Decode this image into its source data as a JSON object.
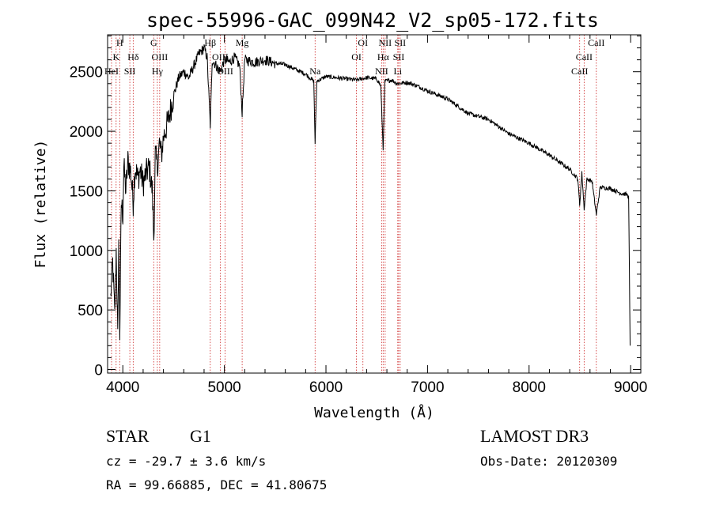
{
  "chart_data": {
    "type": "line",
    "title": "spec-55996-GAC_099N42_V2_sp05-172.fits",
    "xlabel": "Wavelength (Å)",
    "ylabel": "Flux (relative)",
    "xlim": [
      3850,
      9100
    ],
    "ylim": [
      -30,
      2810
    ],
    "xticks": [
      4000,
      5000,
      6000,
      7000,
      8000,
      9000
    ],
    "xtick_labels": [
      "4000",
      "5000",
      "6000",
      "7000",
      "8000",
      "9000"
    ],
    "yticks": [
      0,
      500,
      1000,
      1500,
      2000,
      2500
    ],
    "ytick_labels": [
      "0",
      "500",
      "1000",
      "1500",
      "2000",
      "2500"
    ],
    "series": [
      {
        "name": "spectrum",
        "x": [
          3880,
          3900,
          3920,
          3935,
          3950,
          3960,
          3970,
          3985,
          4000,
          4010,
          4030,
          4050,
          4080,
          4102,
          4120,
          4150,
          4170,
          4200,
          4230,
          4260,
          4290,
          4305,
          4320,
          4340,
          4360,
          4380,
          4400,
          4450,
          4500,
          4550,
          4600,
          4650,
          4700,
          4750,
          4800,
          4830,
          4861,
          4880,
          4920,
          4960,
          5000,
          5050,
          5100,
          5150,
          5175,
          5200,
          5300,
          5400,
          5500,
          5600,
          5700,
          5800,
          5880,
          5893,
          5910,
          6000,
          6100,
          6200,
          6300,
          6400,
          6500,
          6540,
          6563,
          6580,
          6650,
          6700,
          6800,
          6900,
          7000,
          7200,
          7400,
          7600,
          7800,
          8000,
          8200,
          8400,
          8480,
          8498,
          8520,
          8542,
          8570,
          8620,
          8662,
          8700,
          8800,
          8900,
          8960,
          8980,
          8995
        ],
        "y": [
          600,
          900,
          450,
          1000,
          250,
          1100,
          300,
          1400,
          1300,
          1700,
          1500,
          1750,
          1650,
          1400,
          1700,
          1600,
          1680,
          1560,
          1650,
          1700,
          1500,
          1100,
          1800,
          1700,
          1900,
          1800,
          1950,
          2100,
          2300,
          2450,
          2500,
          2450,
          2550,
          2650,
          2700,
          2620,
          2050,
          2600,
          2550,
          2500,
          2600,
          2580,
          2620,
          2550,
          2150,
          2600,
          2580,
          2600,
          2570,
          2560,
          2520,
          2480,
          2420,
          1900,
          2420,
          2460,
          2450,
          2440,
          2430,
          2450,
          2440,
          2380,
          1850,
          2420,
          2430,
          2400,
          2410,
          2380,
          2340,
          2270,
          2150,
          2100,
          1980,
          1900,
          1800,
          1680,
          1600,
          1380,
          1650,
          1350,
          1600,
          1580,
          1300,
          1530,
          1520,
          1480,
          1470,
          1450,
          200
        ]
      }
    ],
    "spectral_lines": [
      {
        "wave": 3934,
        "label": "K",
        "row": 1
      },
      {
        "wave": 3969,
        "label": "H",
        "row": 0
      },
      {
        "wave": 3889,
        "label": "HeI",
        "row": 2
      },
      {
        "wave": 4069,
        "label": "SII",
        "row": 2
      },
      {
        "wave": 4102,
        "label": "Hδ",
        "row": 1
      },
      {
        "wave": 4304,
        "label": "G",
        "row": 0
      },
      {
        "wave": 4363,
        "label": "OIII",
        "row": 1
      },
      {
        "wave": 4340,
        "label": "Hγ",
        "row": 2
      },
      {
        "wave": 4861,
        "label": "Hβ",
        "row": 0
      },
      {
        "wave": 4959,
        "label": "OIII",
        "row": 1
      },
      {
        "wave": 5007,
        "label": "OIII",
        "row": 2
      },
      {
        "wave": 5175,
        "label": "Mg",
        "row": 0
      },
      {
        "wave": 5893,
        "label": "Na",
        "row": 2
      },
      {
        "wave": 6300,
        "label": "OI",
        "row": 1
      },
      {
        "wave": 6364,
        "label": "OI",
        "row": 0
      },
      {
        "wave": 6548,
        "label": "NII",
        "row": 2
      },
      {
        "wave": 6563,
        "label": "Hα",
        "row": 1
      },
      {
        "wave": 6583,
        "label": "NII",
        "row": 0
      },
      {
        "wave": 6707,
        "label": "Li",
        "row": 2
      },
      {
        "wave": 6716,
        "label": "SII",
        "row": 1
      },
      {
        "wave": 6731,
        "label": "SII",
        "row": 0
      },
      {
        "wave": 8498,
        "label": "CaII",
        "row": 2
      },
      {
        "wave": 8542,
        "label": "CaII",
        "row": 1
      },
      {
        "wave": 8662,
        "label": "CaII",
        "row": 0
      }
    ],
    "annotations": {
      "object_type": "STAR",
      "subclass": "G1",
      "survey": "LAMOST DR3",
      "velocity": "cz = -29.7 ± 3.6 km/s",
      "obs_date": "Obs-Date: 20120309",
      "coordinates": "RA =  99.66885, DEC =  41.80675"
    }
  }
}
